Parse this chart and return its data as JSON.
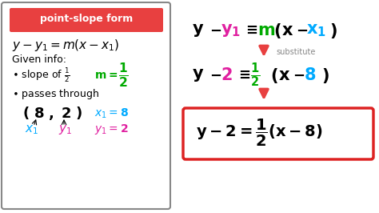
{
  "bg_color": "#ffffff",
  "left_panel_bg": "#ffffff",
  "left_panel_border": "#888888",
  "title_bg": "#e84040",
  "title_text": "point-slope form",
  "title_color": "#ffffff",
  "formula_text": "$y - y_1 = m(x - x_1)$",
  "given_info": "Given info:",
  "slope_label": "• slope of ",
  "slope_frac": "$\\frac{1}{2}$",
  "m_equals": "  m=",
  "m_frac": "$\\frac{1}{2}$",
  "passes_text": "• passes through",
  "point_text": "( 8 , 2 )",
  "x1_label": "$x_1$",
  "y1_label": "$y_1$",
  "x1_eq": "$x_1 = 8$",
  "y1_eq": "$y_1 = 2$",
  "arrow_color": "#e84040",
  "substitute_text": "substitute",
  "final_box_color": "#dd2222",
  "colors": {
    "black": "#000000",
    "magenta": "#e020a0",
    "green": "#00aa00",
    "cyan": "#00aaff",
    "red": "#e84040",
    "gray": "#888888"
  }
}
